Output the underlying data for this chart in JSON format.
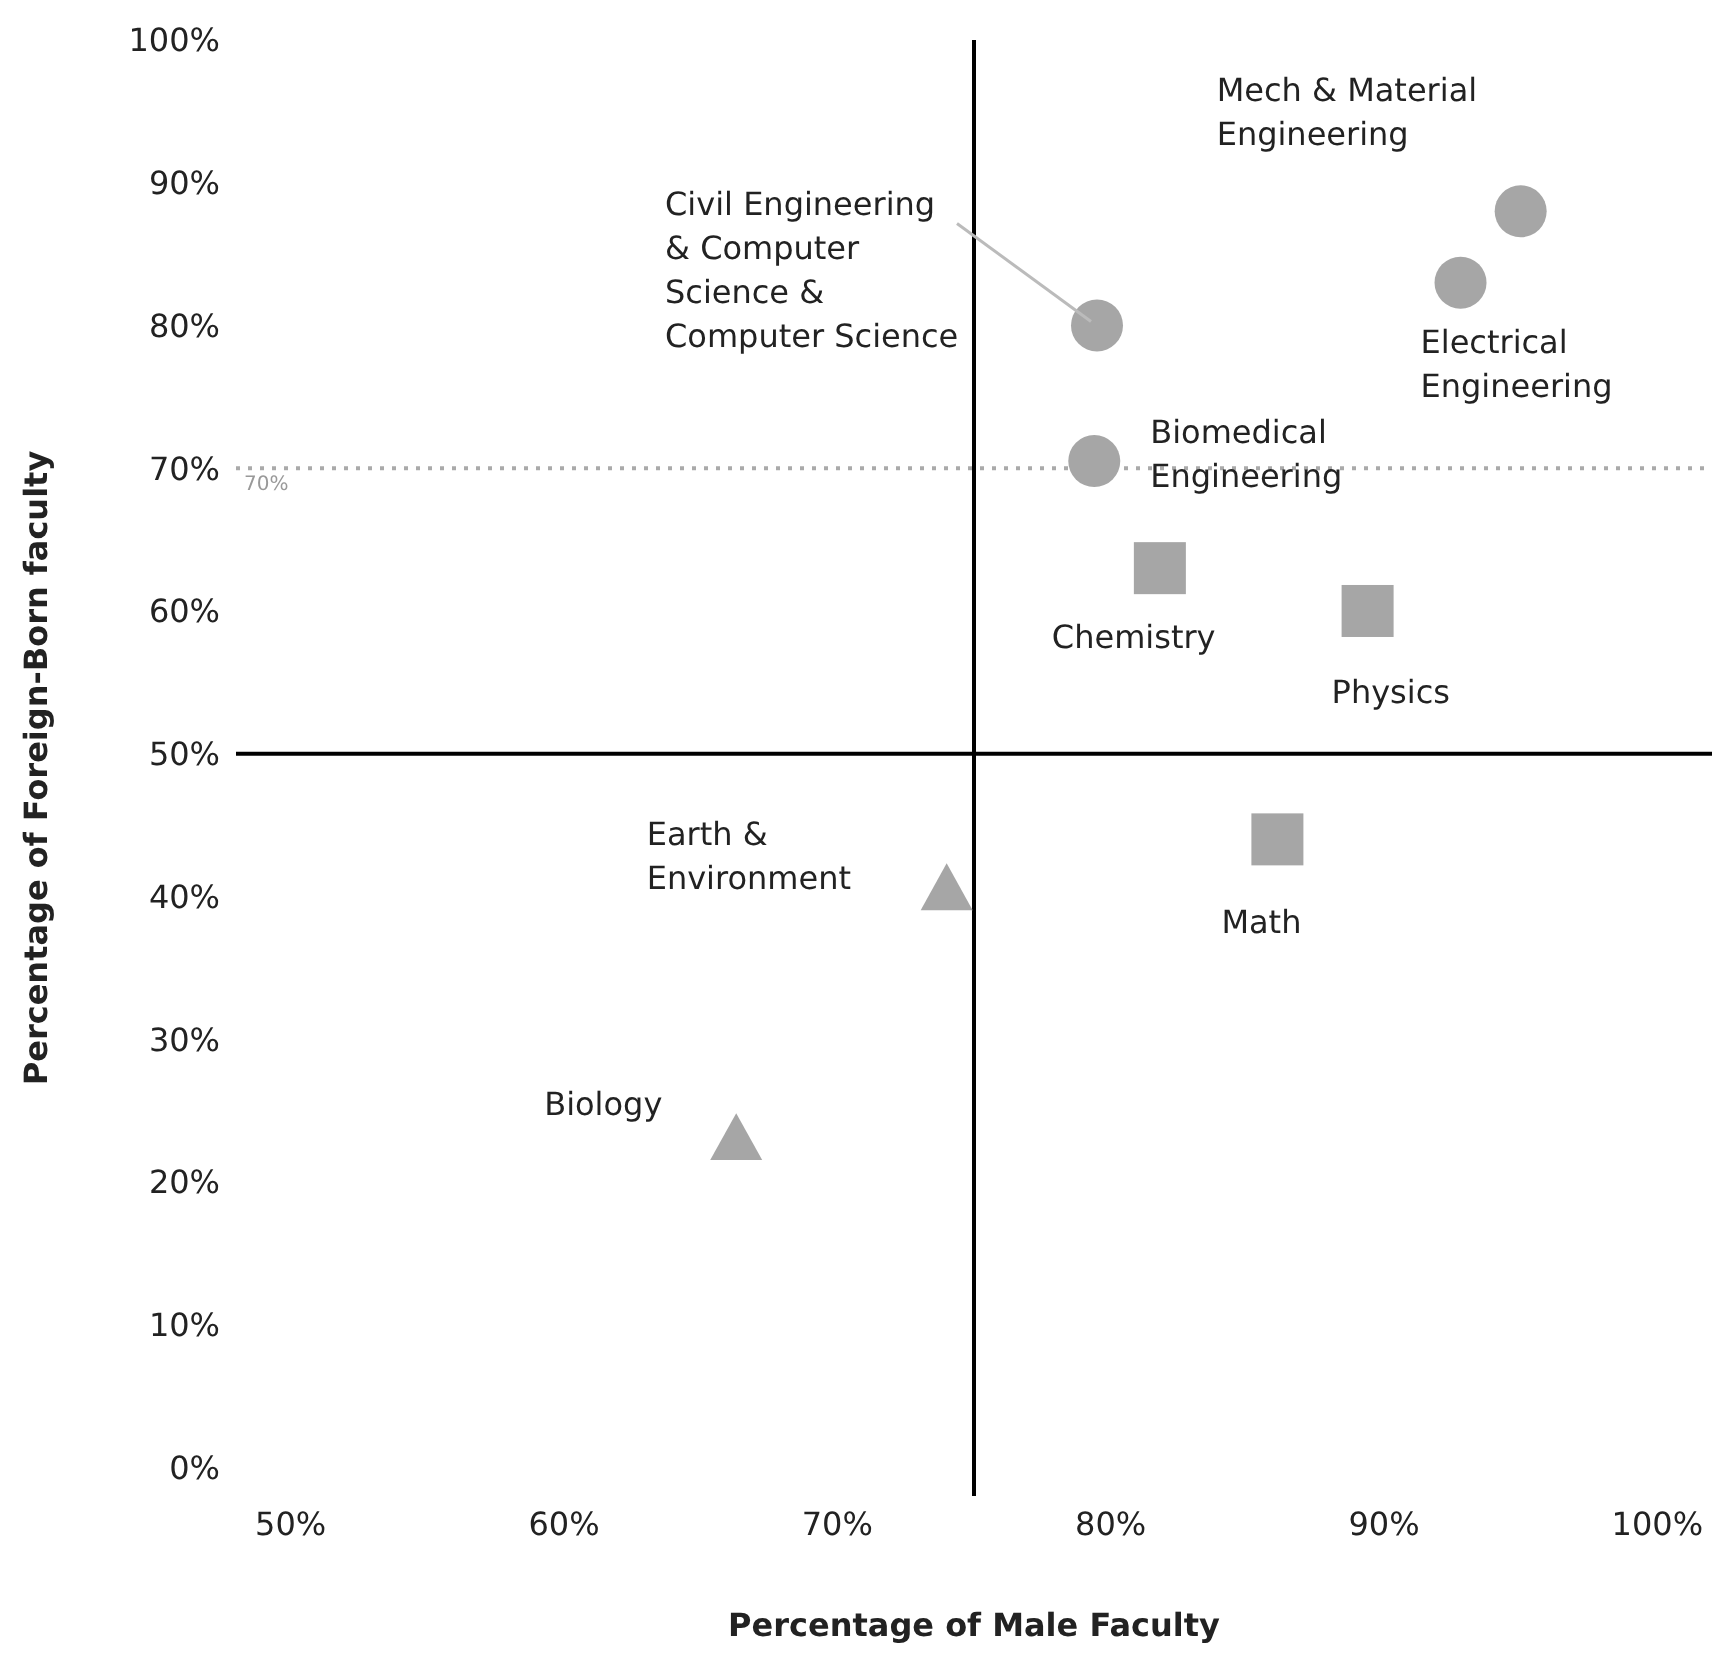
{
  "chart_data": {
    "type": "scatter",
    "xlabel": "Percentage of Male Faculty",
    "ylabel": "Percentage of Foreign-Born faculty",
    "xlim": [
      48,
      102
    ],
    "ylim": [
      -2,
      100
    ],
    "xticks": [
      {
        "value": 50,
        "label": "50%"
      },
      {
        "value": 60,
        "label": "60%"
      },
      {
        "value": 70,
        "label": "70%"
      },
      {
        "value": 80,
        "label": "80%"
      },
      {
        "value": 90,
        "label": "90%"
      },
      {
        "value": 100,
        "label": "100%"
      }
    ],
    "yticks": [
      {
        "value": 0,
        "label": "0%"
      },
      {
        "value": 10,
        "label": "10%"
      },
      {
        "value": 20,
        "label": "20%"
      },
      {
        "value": 30,
        "label": "30%"
      },
      {
        "value": 40,
        "label": "40%"
      },
      {
        "value": 50,
        "label": "50%"
      },
      {
        "value": 60,
        "label": "60%"
      },
      {
        "value": 70,
        "label": "70%"
      },
      {
        "value": 80,
        "label": "80%"
      },
      {
        "value": 90,
        "label": "90%"
      },
      {
        "value": 100,
        "label": "100%"
      }
    ],
    "grid": false,
    "legend": false,
    "series": [
      {
        "color": "#a6a6a6",
        "marker": "circle",
        "x": [
          79.5,
          95,
          92.8,
          79.4
        ],
        "values": [
          80,
          88,
          83,
          70.5
        ]
      },
      {
        "color": "#a6a6a6",
        "marker": "square",
        "x": [
          81.8,
          89.4,
          86.1
        ],
        "values": [
          63,
          60,
          44
        ]
      },
      {
        "color": "#a6a6a6",
        "marker": "triangle",
        "x": [
          74,
          66.3
        ],
        "values": [
          40.5,
          23
        ]
      }
    ],
    "ref_lines": [
      {
        "axis": "x",
        "value": 75,
        "color": "#000000",
        "line_style": "solid"
      },
      {
        "axis": "y",
        "value": 50,
        "color": "#000000",
        "line_style": "solid"
      },
      {
        "axis": "y",
        "value": 70,
        "label": "70%",
        "color": "#aaaaaa",
        "line_style": "dotted"
      }
    ],
    "annotations": [
      {
        "text": "Civil Engineering & Computer Science & Computer Science",
        "x": 79.5,
        "y": 80
      },
      {
        "text": "Mech & Material Engineering",
        "x": 95,
        "y": 88
      },
      {
        "text": "Electrical Engineering",
        "x": 92.8,
        "y": 83
      },
      {
        "text": "Biomedical Engineering",
        "x": 79.4,
        "y": 70.5
      },
      {
        "text": "Chemistry",
        "x": 81.8,
        "y": 63
      },
      {
        "text": "Physics",
        "x": 89.4,
        "y": 60
      },
      {
        "text": "Math",
        "x": 86.1,
        "y": 44
      },
      {
        "text": "Earth & Environment",
        "x": 74,
        "y": 40.5
      },
      {
        "text": "Biology",
        "x": 66.3,
        "y": 23
      }
    ]
  }
}
